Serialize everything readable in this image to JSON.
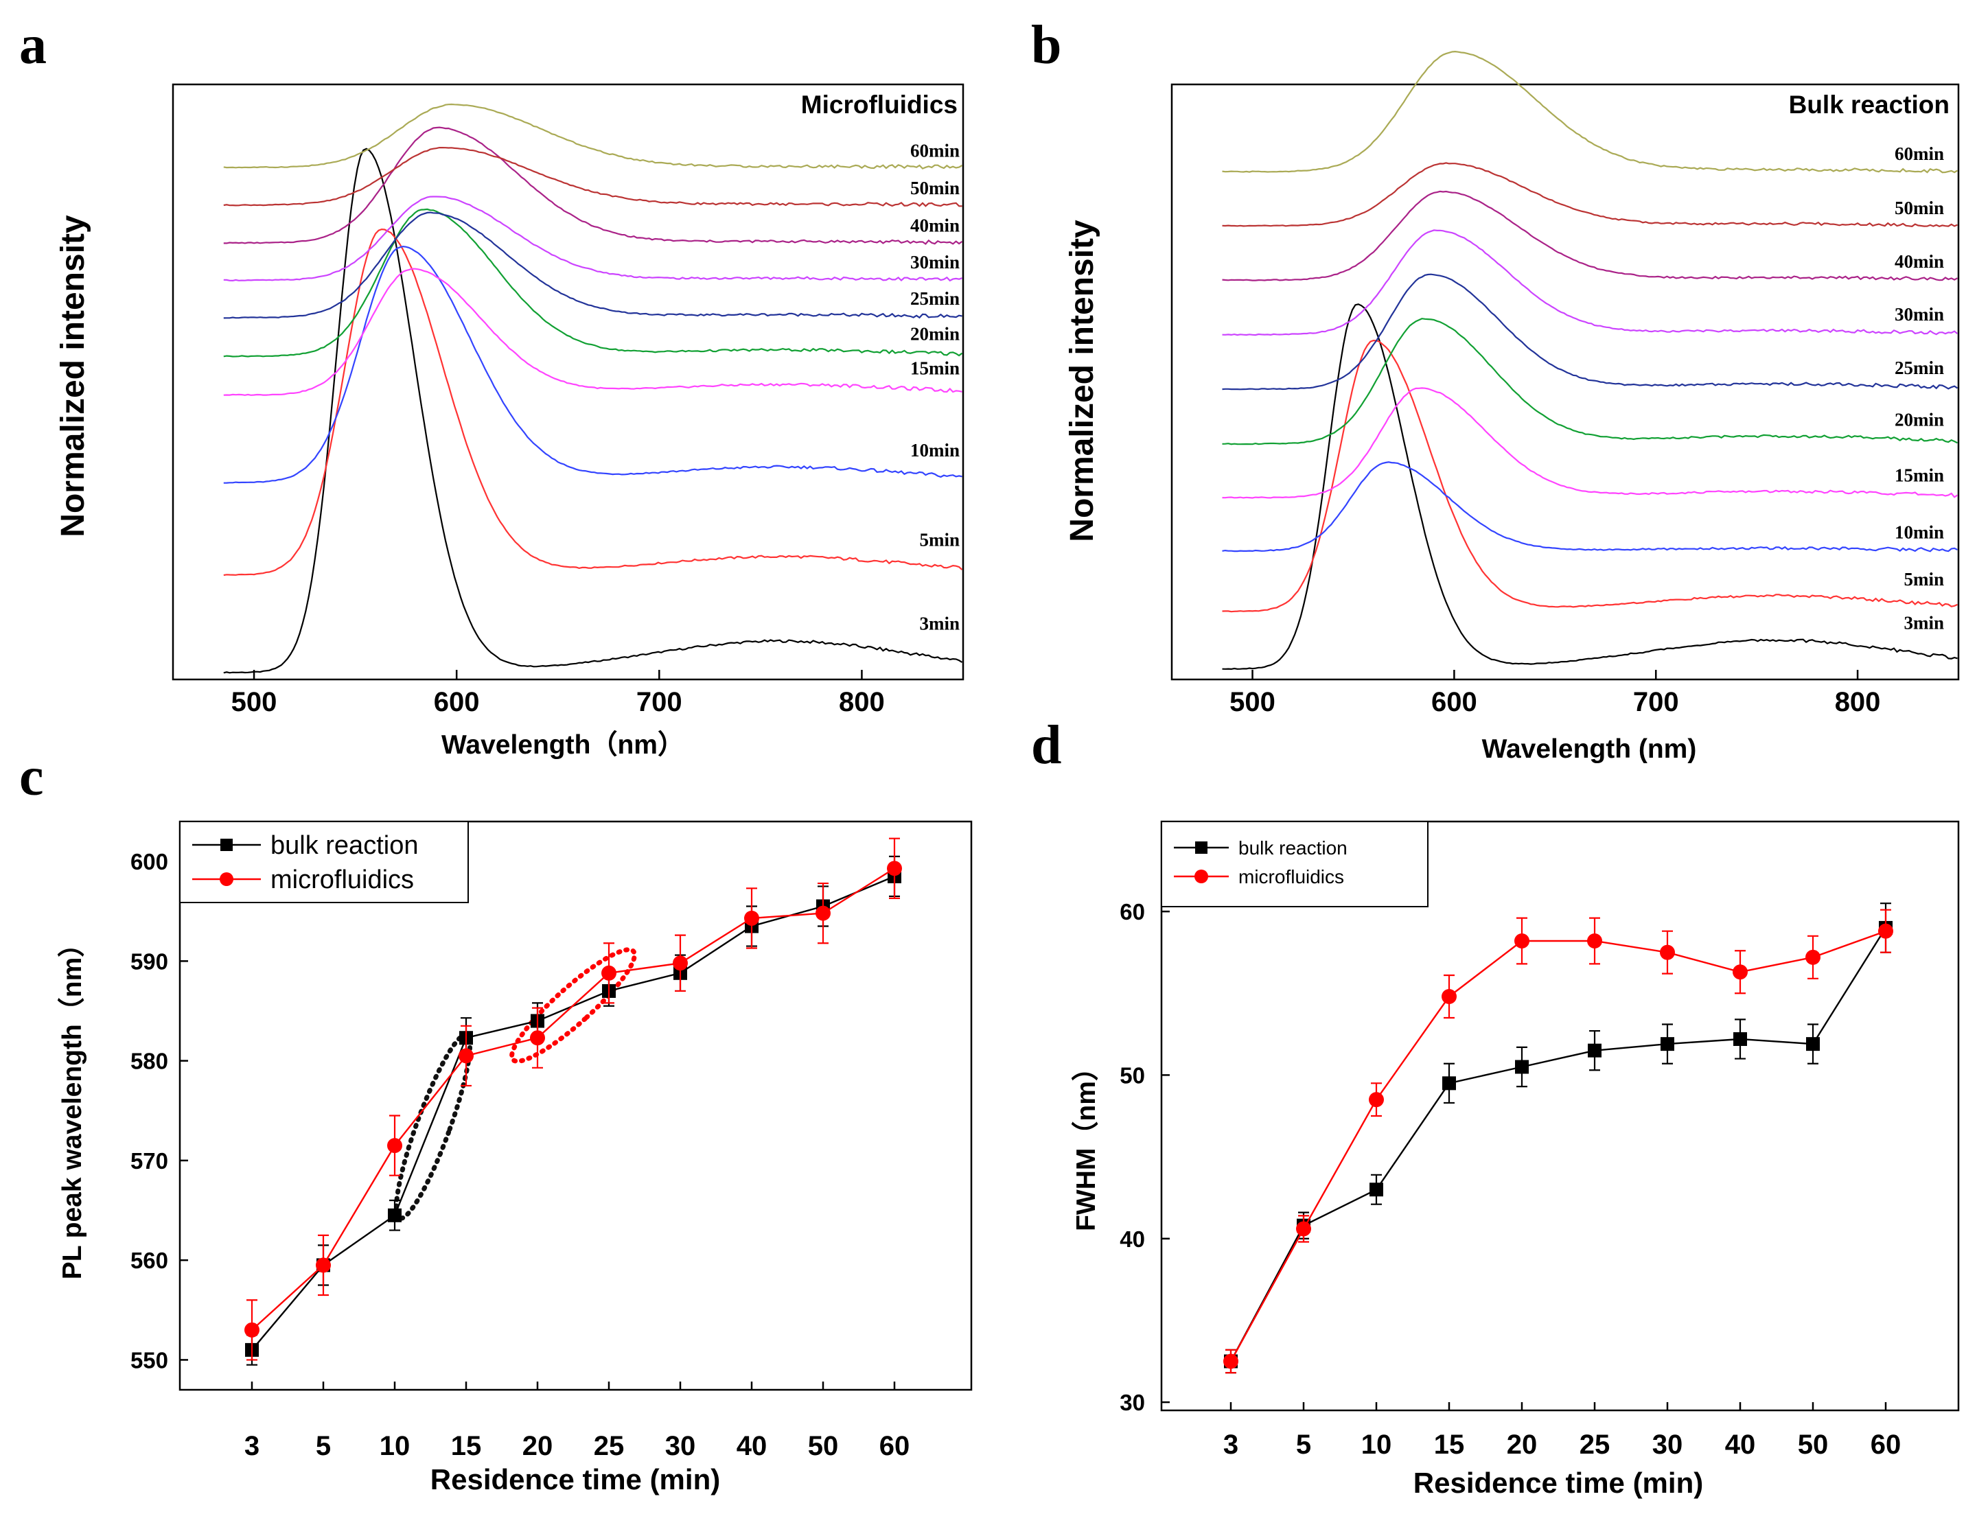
{
  "chart_data": [
    {
      "id": "a",
      "type": "line",
      "panel_letter": "a",
      "title": "Microfluidics",
      "xlabel": "Wavelength（nm）",
      "ylabel": "Normalized intensity",
      "xlim": [
        460,
        850
      ],
      "xticks": [
        500,
        600,
        700,
        800
      ],
      "series_color_map": [
        "#000000",
        "#ff3333",
        "#3344ff",
        "#ff44ff",
        "#11a033",
        "#223399",
        "#cc44ff",
        "#aa2288",
        "#bb3333",
        "#aaaa55"
      ],
      "series": [
        {
          "name": "3min",
          "peak": 555,
          "width": 19,
          "amp": 1.0,
          "base": 0.0,
          "tail": 0.06
        },
        {
          "name": "5min",
          "peak": 563,
          "width": 24,
          "amp": 0.66,
          "base": 0.18,
          "tail": 0.035
        },
        {
          "name": "10min",
          "peak": 573,
          "width": 27,
          "amp": 0.45,
          "base": 0.355,
          "tail": 0.03
        },
        {
          "name": "15min",
          "peak": 578,
          "width": 27,
          "amp": 0.24,
          "base": 0.52,
          "tail": 0.02
        },
        {
          "name": "20min",
          "peak": 584,
          "width": 28,
          "amp": 0.28,
          "base": 0.592,
          "tail": 0.012
        },
        {
          "name": "25min",
          "peak": 587,
          "width": 30,
          "amp": 0.2,
          "base": 0.664,
          "tail": 0.006
        },
        {
          "name": "30min",
          "peak": 589,
          "width": 30,
          "amp": 0.16,
          "base": 0.735,
          "tail": 0.004
        },
        {
          "name": "40min",
          "peak": 591,
          "width": 31,
          "amp": 0.22,
          "base": 0.806,
          "tail": 0.003
        },
        {
          "name": "50min",
          "peak": 594,
          "width": 34,
          "amp": 0.11,
          "base": 0.878,
          "tail": 0.002
        },
        {
          "name": "60min",
          "peak": 598,
          "width": 35,
          "amp": 0.12,
          "base": 0.95,
          "tail": 0.002
        }
      ]
    },
    {
      "id": "b",
      "type": "line",
      "panel_letter": "b",
      "title": "Bulk reaction",
      "xlabel": "Wavelength (nm)",
      "ylabel": "Normalized intensity",
      "xlim": [
        460,
        850
      ],
      "xticks": [
        500,
        600,
        700,
        800
      ],
      "series_color_map": [
        "#000000",
        "#ff3333",
        "#3344ff",
        "#ff44ff",
        "#11a033",
        "#223399",
        "#cc44ff",
        "#aa2288",
        "#bb3333",
        "#aaaa55"
      ],
      "series": [
        {
          "name": "3min",
          "peak": 552,
          "width": 19,
          "amp": 0.7,
          "base": 0.0,
          "tail": 0.055
        },
        {
          "name": "5min",
          "peak": 560,
          "width": 22,
          "amp": 0.52,
          "base": 0.104,
          "tail": 0.03
        },
        {
          "name": "10min",
          "peak": 567,
          "width": 24,
          "amp": 0.17,
          "base": 0.214,
          "tail": 0.005
        },
        {
          "name": "15min",
          "peak": 583,
          "width": 26,
          "amp": 0.21,
          "base": 0.318,
          "tail": 0.012
        },
        {
          "name": "20min",
          "peak": 585,
          "width": 27,
          "amp": 0.24,
          "base": 0.422,
          "tail": 0.015
        },
        {
          "name": "25min",
          "peak": 588,
          "width": 27,
          "amp": 0.22,
          "base": 0.526,
          "tail": 0.01
        },
        {
          "name": "30min",
          "peak": 591,
          "width": 28,
          "amp": 0.2,
          "base": 0.63,
          "tail": 0.008
        },
        {
          "name": "40min",
          "peak": 594,
          "width": 30,
          "amp": 0.17,
          "base": 0.734,
          "tail": 0.005
        },
        {
          "name": "50min",
          "peak": 596,
          "width": 31,
          "amp": 0.12,
          "base": 0.838,
          "tail": 0.004
        },
        {
          "name": "60min",
          "peak": 600,
          "width": 32,
          "amp": 0.23,
          "base": 0.942,
          "tail": 0.004
        }
      ]
    },
    {
      "id": "c",
      "type": "line",
      "panel_letter": "c",
      "xlabel": "Residence time (min)",
      "ylabel": "PL peak wavelength（nm）",
      "categories": [
        "3",
        "5",
        "10",
        "15",
        "20",
        "25",
        "30",
        "40",
        "50",
        "60"
      ],
      "ylim": [
        547,
        604
      ],
      "yticks": [
        550,
        560,
        570,
        580,
        590,
        600
      ],
      "legend_position": "top-left",
      "series": [
        {
          "name": "bulk reaction",
          "color": "#000000",
          "marker": "square",
          "values": [
            551.0,
            559.5,
            564.5,
            582.3,
            584.0,
            587.0,
            588.8,
            593.5,
            595.5,
            598.5
          ],
          "errors": [
            1.5,
            2.0,
            1.5,
            2.0,
            1.8,
            1.5,
            1.8,
            2.0,
            2.0,
            2.0
          ]
        },
        {
          "name": "microfluidics",
          "color": "#ff0000",
          "marker": "circle",
          "values": [
            553.0,
            559.5,
            571.5,
            580.5,
            582.3,
            588.8,
            589.8,
            594.3,
            594.8,
            599.3
          ],
          "errors": [
            3.0,
            3.0,
            3.0,
            3.0,
            3.0,
            3.0,
            2.8,
            3.0,
            3.0,
            3.0
          ]
        }
      ],
      "annotations": [
        {
          "type": "ellipse",
          "style": "dotted",
          "color": "#111111",
          "around": "bulk reaction 10-15 min"
        },
        {
          "type": "ellipse",
          "style": "dotted",
          "color": "#ff0000",
          "around": "20-25 min"
        }
      ]
    },
    {
      "id": "d",
      "type": "line",
      "panel_letter": "d",
      "xlabel": "Residence time (min)",
      "ylabel": "FWHM（nm）",
      "categories": [
        "3",
        "5",
        "10",
        "15",
        "20",
        "25",
        "30",
        "40",
        "50",
        "60"
      ],
      "ylim": [
        29.5,
        65.5
      ],
      "yticks": [
        30,
        40,
        50,
        60
      ],
      "legend_position": "top-left",
      "series": [
        {
          "name": "bulk reaction",
          "color": "#000000",
          "marker": "square",
          "values": [
            32.5,
            40.8,
            43.0,
            49.5,
            50.5,
            51.5,
            51.9,
            52.2,
            51.9,
            59.0
          ],
          "errors": [
            0.7,
            0.8,
            0.9,
            1.2,
            1.2,
            1.2,
            1.2,
            1.2,
            1.2,
            1.5
          ]
        },
        {
          "name": "microfluidics",
          "color": "#ff0000",
          "marker": "circle",
          "values": [
            32.5,
            40.6,
            48.5,
            54.8,
            58.2,
            58.2,
            57.5,
            56.3,
            57.2,
            58.8
          ],
          "errors": [
            0.7,
            0.8,
            1.0,
            1.3,
            1.4,
            1.4,
            1.3,
            1.3,
            1.3,
            1.3
          ]
        }
      ]
    }
  ]
}
